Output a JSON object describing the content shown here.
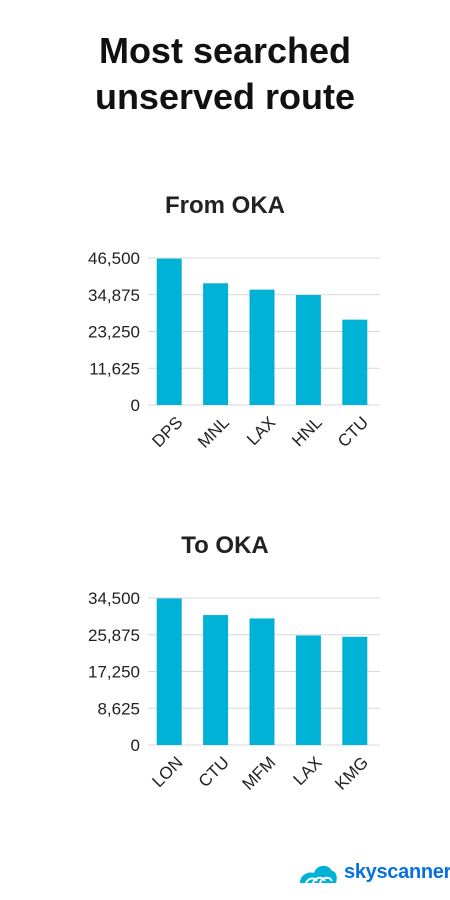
{
  "page": {
    "title_line1": "Most searched",
    "title_line2": "unserved route"
  },
  "brand": {
    "logo_text": "skyscanner",
    "accent": "#00b2d6",
    "logo_color": "#0770e3"
  },
  "chart_data": [
    {
      "type": "bar",
      "title": "From OKA",
      "categories": [
        "DPS",
        "MNL",
        "LAX",
        "HNL",
        "CTU"
      ],
      "values": [
        46300,
        38500,
        36500,
        34800,
        27000
      ],
      "yticks": [
        0,
        11625,
        23250,
        34875,
        46500
      ],
      "ytick_labels": [
        "0",
        "11,625",
        "23,250",
        "34,875",
        "46,500"
      ],
      "ylim": [
        0,
        46500
      ],
      "grid": true,
      "color": "#00b2d6"
    },
    {
      "type": "bar",
      "title": "To OKA",
      "categories": [
        "LON",
        "CTU",
        "MFM",
        "LAX",
        "KMG"
      ],
      "values": [
        34400,
        30500,
        29700,
        25700,
        25400
      ],
      "yticks": [
        0,
        8625,
        17250,
        25875,
        34500
      ],
      "ytick_labels": [
        "0",
        "8,625",
        "17,250",
        "25,875",
        "34,500"
      ],
      "ylim": [
        0,
        34500
      ],
      "grid": true,
      "color": "#00b2d6"
    }
  ]
}
